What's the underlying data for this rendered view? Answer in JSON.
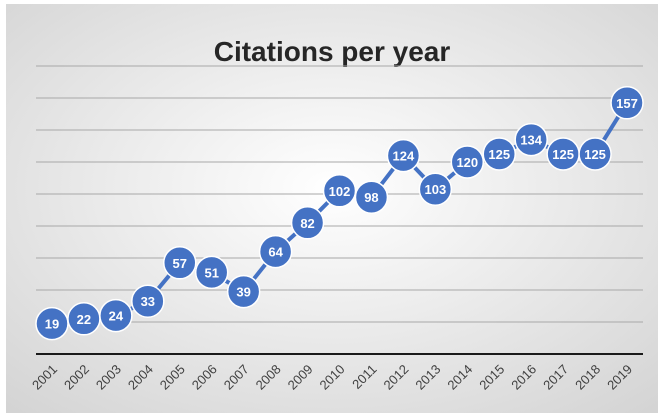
{
  "chart_data": {
    "type": "line",
    "title": "Citations per year",
    "xlabel": "",
    "ylabel": "",
    "categories": [
      "2001",
      "2002",
      "2003",
      "2004",
      "2005",
      "2006",
      "2007",
      "2008",
      "2009",
      "2010",
      "2011",
      "2012",
      "2013",
      "2014",
      "2015",
      "2016",
      "2017",
      "2018",
      "2019"
    ],
    "series": [
      {
        "values": [
          19,
          22,
          24,
          33,
          57,
          51,
          39,
          64,
          82,
          102,
          98,
          124,
          103,
          120,
          125,
          134,
          125,
          125,
          157
        ]
      }
    ],
    "ylim": [
      0,
      180
    ],
    "grid": true,
    "data_labels": true,
    "legend": "none",
    "colors": {
      "line": "#4472C4",
      "marker": "#4472C4",
      "label_text": "#ffffff",
      "gridline": "#a8a8a8",
      "axis": "#1a1a1a",
      "title": "#262626",
      "tick_label": "#404040",
      "background_center": "#ffffff",
      "background_edge": "#d3d3d3"
    }
  }
}
